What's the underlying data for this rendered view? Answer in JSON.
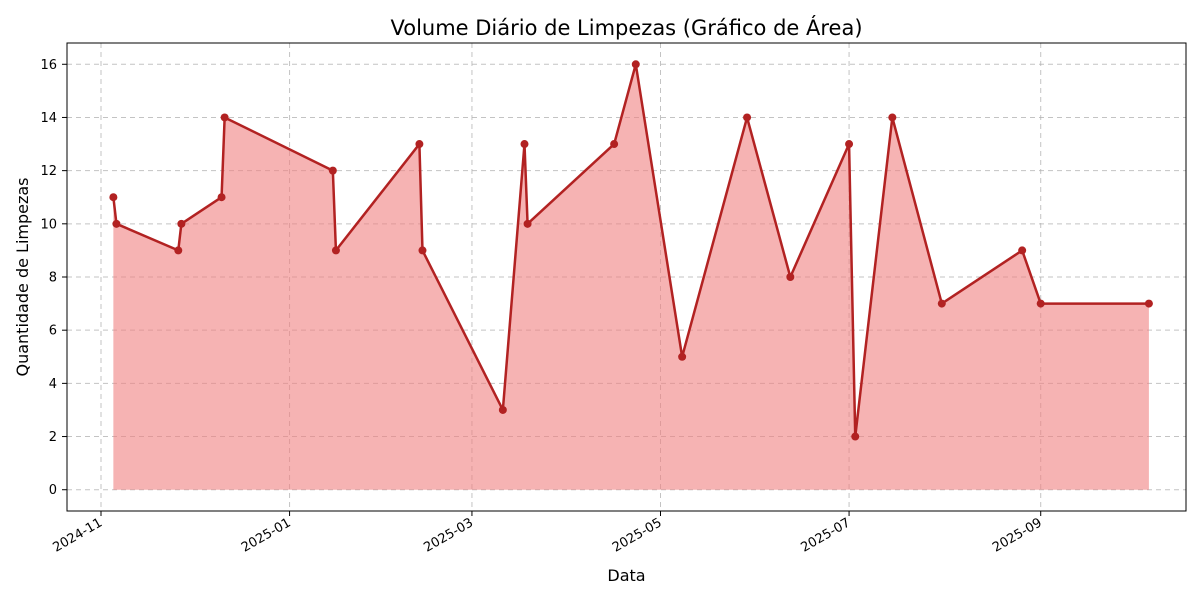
{
  "chart_data": {
    "type": "area",
    "title": "Volume Diário de Limpezas (Gráfico de Área)",
    "xlabel": "Data",
    "ylabel": "Quantidade de Limpezas",
    "x_axis_type": "date",
    "xlim": [
      "2024-10-21",
      "2025-10-18"
    ],
    "ylim": [
      -0.8,
      16.8
    ],
    "x_ticks": [
      "2024-11-01",
      "2025-01-01",
      "2025-03-01",
      "2025-05-01",
      "2025-07-01",
      "2025-09-01"
    ],
    "x_tick_labels": [
      "2024-11",
      "2025-01",
      "2025-03",
      "2025-05",
      "2025-07",
      "2025-09"
    ],
    "y_ticks": [
      0,
      2,
      4,
      6,
      8,
      10,
      12,
      14,
      16
    ],
    "grid": true,
    "colors": {
      "line": "#b22222",
      "fill": "#f08080",
      "grid": "#b0b0b0"
    },
    "x": [
      "2024-11-05",
      "2024-11-06",
      "2024-11-26",
      "2024-11-27",
      "2024-12-10",
      "2024-12-11",
      "2025-01-15",
      "2025-01-16",
      "2025-02-12",
      "2025-02-13",
      "2025-03-11",
      "2025-03-18",
      "2025-03-19",
      "2025-04-16",
      "2025-04-23",
      "2025-05-08",
      "2025-05-29",
      "2025-06-12",
      "2025-07-01",
      "2025-07-03",
      "2025-07-15",
      "2025-07-31",
      "2025-08-26",
      "2025-09-01",
      "2025-10-06"
    ],
    "values": [
      11,
      10,
      9,
      10,
      11,
      14,
      12,
      9,
      13,
      9,
      3,
      13,
      10,
      13,
      16,
      5,
      14,
      8,
      13,
      2,
      14,
      7,
      9,
      7,
      7
    ]
  }
}
